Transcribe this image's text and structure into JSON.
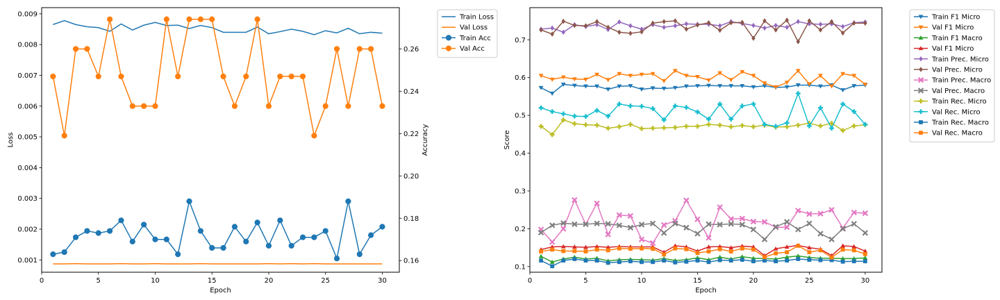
{
  "chart_data": [
    {
      "type": "line",
      "xlabel": "Epoch",
      "ylabel": "Loss",
      "y2label": "Accuracy",
      "xlim": [
        0,
        31.5
      ],
      "ylim": [
        0.0006,
        0.0092
      ],
      "y2lim": [
        0.1545,
        0.2795
      ],
      "xticks": [
        0,
        5,
        10,
        15,
        20,
        25,
        30
      ],
      "yticks": [
        0.001,
        0.002,
        0.003,
        0.004,
        0.005,
        0.006,
        0.007,
        0.008,
        0.009
      ],
      "yticklabels": [
        "0.001",
        "0.002",
        "0.003",
        "0.004",
        "0.005",
        "0.006",
        "0.007",
        "0.008",
        "0.009"
      ],
      "y2ticks": [
        0.16,
        0.18,
        0.2,
        0.22,
        0.24,
        0.26
      ],
      "y2ticklabels": [
        "0.16",
        "0.18",
        "0.20",
        "0.22",
        "0.24",
        "0.26"
      ],
      "legend_position": "outside upper right",
      "x": [
        1,
        2,
        3,
        4,
        5,
        6,
        7,
        8,
        9,
        10,
        11,
        12,
        13,
        14,
        15,
        16,
        17,
        18,
        19,
        20,
        21,
        22,
        23,
        24,
        25,
        26,
        27,
        28,
        29,
        30
      ],
      "series": [
        {
          "name": "Train Loss",
          "color": "#1f77b4",
          "marker": "none",
          "axis": "left",
          "values": [
            0.00865,
            0.00878,
            0.00865,
            0.00858,
            0.00855,
            0.00843,
            0.00867,
            0.00847,
            0.00863,
            0.00872,
            0.00862,
            0.00863,
            0.00852,
            0.00862,
            0.00855,
            0.0084,
            0.0084,
            0.0084,
            0.00857,
            0.00835,
            0.00842,
            0.0085,
            0.00843,
            0.00832,
            0.00845,
            0.00838,
            0.00853,
            0.00835,
            0.0084,
            0.00837
          ]
        },
        {
          "name": "Val Loss",
          "color": "#ff7f0e",
          "marker": "none",
          "axis": "left",
          "values": [
            0.00087,
            0.00087,
            0.00088,
            0.00087,
            0.00087,
            0.00087,
            0.00088,
            0.00087,
            0.00087,
            0.00088,
            0.00087,
            0.00087,
            0.00087,
            0.00088,
            0.00087,
            0.00087,
            0.00087,
            0.00087,
            0.00087,
            0.00088,
            0.00087,
            0.00088,
            0.00087,
            0.00088,
            0.00087,
            0.00087,
            0.00087,
            0.00087,
            0.00087,
            0.00087
          ]
        },
        {
          "name": "Train Acc",
          "color": "#1f77b4",
          "marker": "circle",
          "axis": "right",
          "values": [
            0.163,
            0.164,
            0.171,
            0.174,
            0.173,
            0.174,
            0.179,
            0.169,
            0.177,
            0.17,
            0.17,
            0.163,
            0.188,
            0.174,
            0.166,
            0.166,
            0.176,
            0.169,
            0.178,
            0.167,
            0.179,
            0.167,
            0.171,
            0.171,
            0.174,
            0.161,
            0.188,
            0.163,
            0.172,
            0.176
          ]
        },
        {
          "name": "Val Acc",
          "color": "#ff7f0e",
          "marker": "circle",
          "axis": "right",
          "values": [
            0.247,
            0.219,
            0.26,
            0.26,
            0.247,
            0.274,
            0.247,
            0.233,
            0.233,
            0.233,
            0.274,
            0.247,
            0.274,
            0.274,
            0.274,
            0.247,
            0.233,
            0.247,
            0.274,
            0.233,
            0.247,
            0.247,
            0.247,
            0.219,
            0.233,
            0.26,
            0.233,
            0.26,
            0.26,
            0.233
          ]
        }
      ]
    },
    {
      "type": "line",
      "xlabel": "Epoch",
      "ylabel": "Score",
      "xlim": [
        0,
        31.5
      ],
      "ylim": [
        0.085,
        0.785
      ],
      "xticks": [
        0,
        5,
        10,
        15,
        20,
        25,
        30
      ],
      "yticks": [
        0.1,
        0.2,
        0.3,
        0.4,
        0.5,
        0.6,
        0.7
      ],
      "yticklabels": [
        "0.1",
        "0.2",
        "0.3",
        "0.4",
        "0.5",
        "0.6",
        "0.7"
      ],
      "legend_position": "outside upper right",
      "x": [
        1,
        2,
        3,
        4,
        5,
        6,
        7,
        8,
        9,
        10,
        11,
        12,
        13,
        14,
        15,
        16,
        17,
        18,
        19,
        20,
        21,
        22,
        23,
        24,
        25,
        26,
        27,
        28,
        29,
        30
      ],
      "series": [
        {
          "name": "Train F1 Micro",
          "color": "#1f77b4",
          "marker": "tri-down",
          "values": [
            0.573,
            0.558,
            0.582,
            0.579,
            0.577,
            0.577,
            0.569,
            0.577,
            0.578,
            0.569,
            0.572,
            0.571,
            0.573,
            0.577,
            0.578,
            0.579,
            0.578,
            0.578,
            0.578,
            0.575,
            0.578,
            0.574,
            0.575,
            0.58,
            0.58,
            0.577,
            0.58,
            0.567,
            0.578,
            0.58
          ]
        },
        {
          "name": "Val F1 Micro",
          "color": "#ff7f0e",
          "marker": "tri-down",
          "values": [
            0.605,
            0.595,
            0.601,
            0.596,
            0.595,
            0.608,
            0.594,
            0.61,
            0.605,
            0.608,
            0.61,
            0.591,
            0.618,
            0.605,
            0.602,
            0.593,
            0.612,
            0.594,
            0.615,
            0.605,
            0.585,
            0.575,
            0.587,
            0.618,
            0.583,
            0.605,
            0.577,
            0.61,
            0.605,
            0.582
          ]
        },
        {
          "name": "Train F1 Macro",
          "color": "#2ca02c",
          "marker": "tri-up",
          "values": [
            0.127,
            0.112,
            0.12,
            0.125,
            0.12,
            0.122,
            0.115,
            0.118,
            0.119,
            0.118,
            0.117,
            0.121,
            0.116,
            0.118,
            0.123,
            0.118,
            0.125,
            0.12,
            0.126,
            0.122,
            0.121,
            0.12,
            0.125,
            0.128,
            0.124,
            0.122,
            0.122,
            0.121,
            0.121,
            0.123
          ]
        },
        {
          "name": "Val F1 Micro",
          "color": "#d62728",
          "marker": "tri-up",
          "values": [
            0.145,
            0.152,
            0.153,
            0.152,
            0.151,
            0.153,
            0.151,
            0.153,
            0.152,
            0.152,
            0.152,
            0.138,
            0.155,
            0.152,
            0.141,
            0.152,
            0.153,
            0.15,
            0.154,
            0.152,
            0.129,
            0.147,
            0.152,
            0.156,
            0.15,
            0.146,
            0.129,
            0.155,
            0.153,
            0.141
          ]
        },
        {
          "name": "Train Prec. Micro",
          "color": "#9467bd",
          "marker": "diamond",
          "values": [
            0.728,
            0.731,
            0.72,
            0.74,
            0.735,
            0.74,
            0.727,
            0.747,
            0.737,
            0.728,
            0.74,
            0.733,
            0.737,
            0.742,
            0.741,
            0.741,
            0.737,
            0.748,
            0.743,
            0.738,
            0.731,
            0.738,
            0.733,
            0.748,
            0.742,
            0.741,
            0.742,
            0.735,
            0.745,
            0.747
          ]
        },
        {
          "name": "Val Prec. Micro",
          "color": "#8c564b",
          "marker": "diamond",
          "values": [
            0.726,
            0.715,
            0.749,
            0.738,
            0.737,
            0.748,
            0.733,
            0.72,
            0.717,
            0.721,
            0.744,
            0.748,
            0.75,
            0.728,
            0.739,
            0.745,
            0.725,
            0.745,
            0.746,
            0.704,
            0.75,
            0.726,
            0.752,
            0.695,
            0.75,
            0.726,
            0.748,
            0.718,
            0.744,
            0.744
          ]
        },
        {
          "name": "Train Prec. Macro",
          "color": "#e377c2",
          "marker": "x",
          "values": [
            0.198,
            0.165,
            0.2,
            0.276,
            0.212,
            0.267,
            0.185,
            0.236,
            0.234,
            0.172,
            0.162,
            0.21,
            0.221,
            0.275,
            0.225,
            0.176,
            0.257,
            0.226,
            0.227,
            0.219,
            0.218,
            0.204,
            0.204,
            0.248,
            0.239,
            0.24,
            0.25,
            0.202,
            0.243,
            0.241
          ]
        },
        {
          "name": "Val Prec. Macro",
          "color": "#7f7f7f",
          "marker": "x",
          "values": [
            0.19,
            0.209,
            0.215,
            0.212,
            0.212,
            0.214,
            0.213,
            0.209,
            0.203,
            0.211,
            0.214,
            0.189,
            0.214,
            0.203,
            0.187,
            0.212,
            0.211,
            0.213,
            0.211,
            0.198,
            0.172,
            0.205,
            0.218,
            0.198,
            0.214,
            0.187,
            0.172,
            0.2,
            0.213,
            0.189
          ]
        },
        {
          "name": "Train Rec. Micro",
          "color": "#bcbd22",
          "marker": "plus",
          "values": [
            0.471,
            0.449,
            0.488,
            0.478,
            0.475,
            0.474,
            0.466,
            0.47,
            0.476,
            0.465,
            0.466,
            0.467,
            0.468,
            0.471,
            0.471,
            0.476,
            0.474,
            0.47,
            0.473,
            0.47,
            0.474,
            0.469,
            0.47,
            0.474,
            0.479,
            0.472,
            0.479,
            0.46,
            0.472,
            0.475
          ]
        },
        {
          "name": "Val Rec. Micro",
          "color": "#17becf",
          "marker": "plus",
          "values": [
            0.52,
            0.51,
            0.504,
            0.498,
            0.497,
            0.513,
            0.498,
            0.53,
            0.525,
            0.524,
            0.518,
            0.488,
            0.525,
            0.521,
            0.509,
            0.49,
            0.53,
            0.49,
            0.525,
            0.53,
            0.476,
            0.471,
            0.48,
            0.558,
            0.472,
            0.52,
            0.466,
            0.53,
            0.51,
            0.476
          ]
        },
        {
          "name": "Train Rec. Macro",
          "color": "#1f77b4",
          "marker": "square",
          "values": [
            0.116,
            0.101,
            0.116,
            0.12,
            0.116,
            0.116,
            0.11,
            0.112,
            0.114,
            0.112,
            0.112,
            0.116,
            0.111,
            0.113,
            0.116,
            0.112,
            0.117,
            0.116,
            0.118,
            0.114,
            0.116,
            0.114,
            0.116,
            0.12,
            0.118,
            0.117,
            0.117,
            0.113,
            0.114,
            0.114
          ]
        },
        {
          "name": "Val Rec. Macro",
          "color": "#ff7f0e",
          "marker": "square",
          "values": [
            0.14,
            0.145,
            0.141,
            0.141,
            0.14,
            0.145,
            0.143,
            0.148,
            0.147,
            0.148,
            0.147,
            0.132,
            0.148,
            0.146,
            0.136,
            0.14,
            0.146,
            0.14,
            0.148,
            0.145,
            0.125,
            0.135,
            0.138,
            0.155,
            0.138,
            0.143,
            0.124,
            0.145,
            0.143,
            0.133
          ]
        }
      ]
    }
  ]
}
